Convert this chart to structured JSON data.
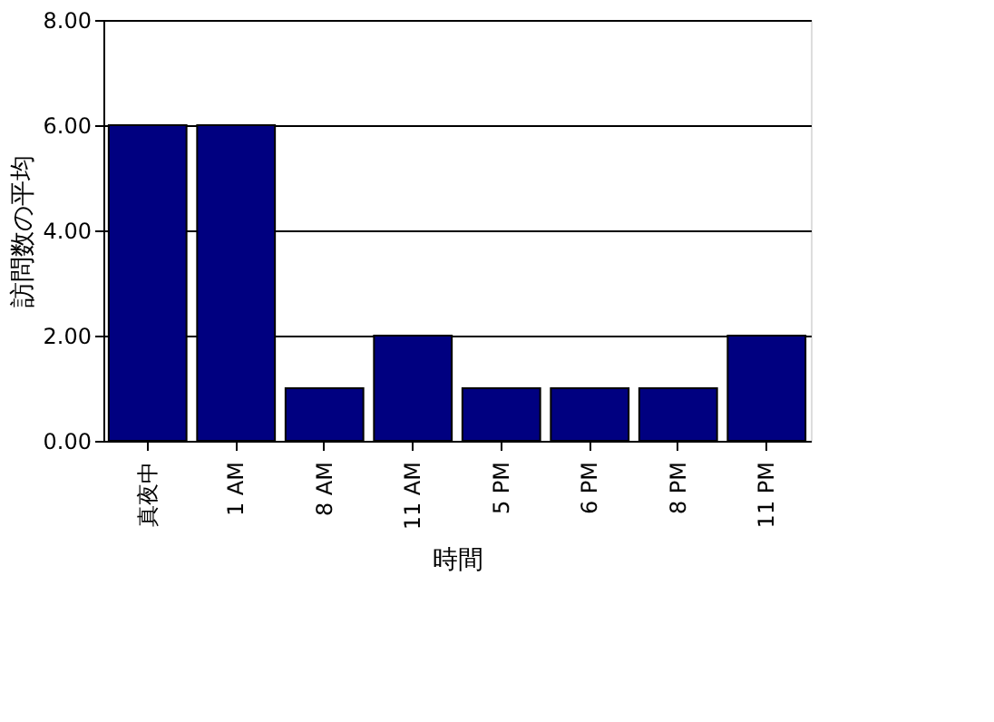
{
  "chart_data": {
    "type": "bar",
    "xlabel": "時間",
    "ylabel": "訪問数の平均",
    "categories": [
      "真夜中",
      "1 AM",
      "8 AM",
      "11 AM",
      "5 PM",
      "6 PM",
      "8 PM",
      "11 PM"
    ],
    "values": [
      6,
      6,
      1,
      2,
      1,
      1,
      1,
      2
    ],
    "color": "#000080",
    "ylim": [
      0,
      8
    ],
    "yticks": [
      {
        "value": 0,
        "label": "0.00"
      },
      {
        "value": 2,
        "label": "2.00"
      },
      {
        "value": 4,
        "label": "4.00"
      },
      {
        "value": 6,
        "label": "6.00"
      },
      {
        "value": 8,
        "label": "8.00"
      }
    ],
    "grid": "y"
  }
}
